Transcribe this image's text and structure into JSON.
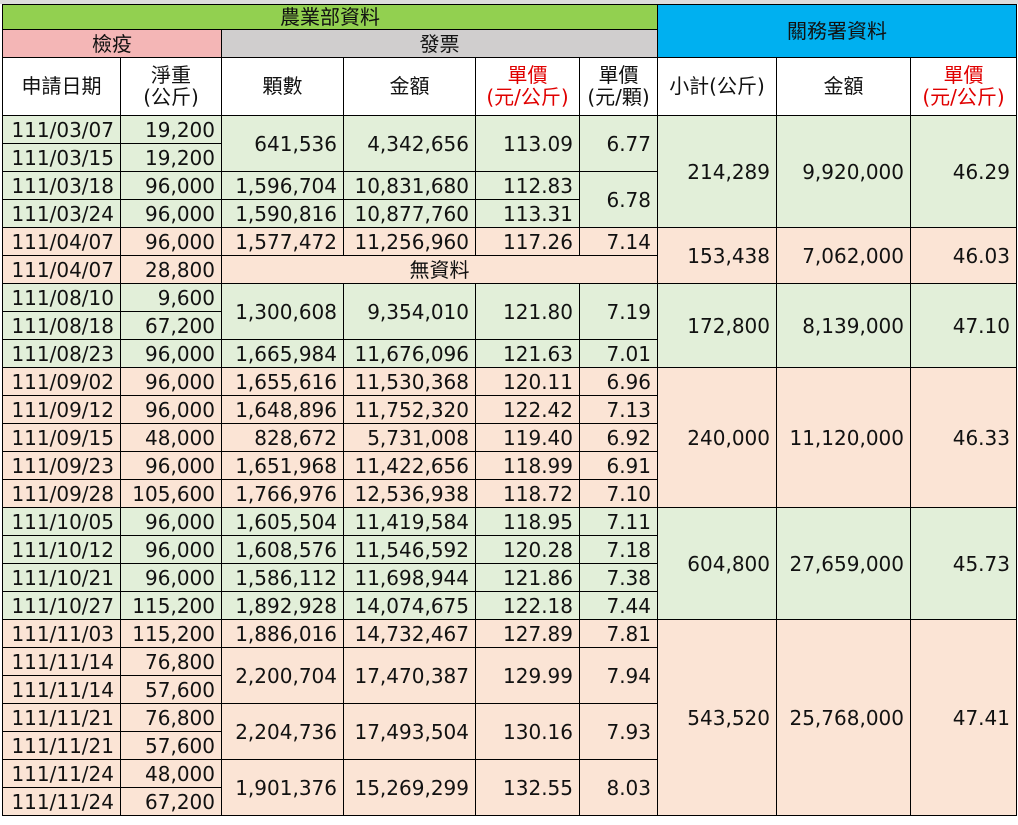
{
  "header": {
    "agri_title": "農業部資料",
    "quarantine_title": "檢疫",
    "invoice_title": "發票",
    "customs_title": "關務署資料"
  },
  "columns": {
    "date": "申請日期",
    "net_weight": "淨重\n(公斤)",
    "count": "顆數",
    "amount": "金額",
    "unit_price_kg": "單價\n(元/公斤)",
    "unit_price_each": "單價\n(元/顆)",
    "subtotal_kg": "小計(公斤)",
    "customs_amount": "金額",
    "customs_unit_price": "單價\n(元/公斤)"
  },
  "no_data_label": "無資料",
  "rows": [
    {
      "date": "111/03/07",
      "weight": "19,200"
    },
    {
      "date": "111/03/15",
      "weight": "19,200"
    },
    {
      "date": "111/03/18",
      "weight": "96,000"
    },
    {
      "date": "111/03/24",
      "weight": "96,000"
    },
    {
      "date": "111/04/07",
      "weight": "96,000"
    },
    {
      "date": "111/04/07",
      "weight": "28,800"
    },
    {
      "date": "111/08/10",
      "weight": "9,600"
    },
    {
      "date": "111/08/18",
      "weight": "67,200"
    },
    {
      "date": "111/08/23",
      "weight": "96,000"
    },
    {
      "date": "111/09/02",
      "weight": "96,000"
    },
    {
      "date": "111/09/12",
      "weight": "96,000"
    },
    {
      "date": "111/09/15",
      "weight": "48,000"
    },
    {
      "date": "111/09/23",
      "weight": "96,000"
    },
    {
      "date": "111/09/28",
      "weight": "105,600"
    },
    {
      "date": "111/10/05",
      "weight": "96,000"
    },
    {
      "date": "111/10/12",
      "weight": "96,000"
    },
    {
      "date": "111/10/21",
      "weight": "96,000"
    },
    {
      "date": "111/10/27",
      "weight": "115,200"
    },
    {
      "date": "111/11/03",
      "weight": "115,200"
    },
    {
      "date": "111/11/14",
      "weight": "76,800"
    },
    {
      "date": "111/11/14",
      "weight": "57,600"
    },
    {
      "date": "111/11/21",
      "weight": "76,800"
    },
    {
      "date": "111/11/21",
      "weight": "57,600"
    },
    {
      "date": "111/11/24",
      "weight": "48,000"
    },
    {
      "date": "111/11/24",
      "weight": "67,200"
    }
  ],
  "invoices": [
    {
      "count": "641,536",
      "amount": "4,342,656",
      "price_kg": "113.09"
    },
    {
      "count": "1,596,704",
      "amount": "10,831,680",
      "price_kg": "112.83"
    },
    {
      "count": "1,590,816",
      "amount": "10,877,760",
      "price_kg": "113.31"
    },
    {
      "count": "1,577,472",
      "amount": "11,256,960",
      "price_kg": "117.26",
      "price_each": "7.14"
    },
    {
      "count": "1,300,608",
      "amount": "9,354,010",
      "price_kg": "121.80",
      "price_each": "7.19"
    },
    {
      "count": "1,665,984",
      "amount": "11,676,096",
      "price_kg": "121.63",
      "price_each": "7.01"
    },
    {
      "count": "1,655,616",
      "amount": "11,530,368",
      "price_kg": "120.11",
      "price_each": "6.96"
    },
    {
      "count": "1,648,896",
      "amount": "11,752,320",
      "price_kg": "122.42",
      "price_each": "7.13"
    },
    {
      "count": "828,672",
      "amount": "5,731,008",
      "price_kg": "119.40",
      "price_each": "6.92"
    },
    {
      "count": "1,651,968",
      "amount": "11,422,656",
      "price_kg": "118.99",
      "price_each": "6.91"
    },
    {
      "count": "1,766,976",
      "amount": "12,536,938",
      "price_kg": "118.72",
      "price_each": "7.10"
    },
    {
      "count": "1,605,504",
      "amount": "11,419,584",
      "price_kg": "118.95",
      "price_each": "7.11"
    },
    {
      "count": "1,608,576",
      "amount": "11,546,592",
      "price_kg": "120.28",
      "price_each": "7.18"
    },
    {
      "count": "1,586,112",
      "amount": "11,698,944",
      "price_kg": "121.86",
      "price_each": "7.38"
    },
    {
      "count": "1,892,928",
      "amount": "14,074,675",
      "price_kg": "122.18",
      "price_each": "7.44"
    },
    {
      "count": "1,886,016",
      "amount": "14,732,467",
      "price_kg": "127.89",
      "price_each": "7.81"
    },
    {
      "count": "2,200,704",
      "amount": "17,470,387",
      "price_kg": "129.99",
      "price_each": "7.94"
    },
    {
      "count": "2,204,736",
      "amount": "17,493,504",
      "price_kg": "130.16",
      "price_each": "7.93"
    },
    {
      "count": "1,901,376",
      "amount": "15,269,299",
      "price_kg": "132.55",
      "price_each": "8.03"
    }
  ],
  "price_each_march": [
    "6.77",
    "6.78"
  ],
  "customs": [
    {
      "subtotal": "214,289",
      "amount": "9,920,000",
      "price": "46.29"
    },
    {
      "subtotal": "153,438",
      "amount": "7,062,000",
      "price": "46.03"
    },
    {
      "subtotal": "172,800",
      "amount": "8,139,000",
      "price": "47.10"
    },
    {
      "subtotal": "240,000",
      "amount": "11,120,000",
      "price": "46.33"
    },
    {
      "subtotal": "604,800",
      "amount": "27,659,000",
      "price": "45.73"
    },
    {
      "subtotal": "543,520",
      "amount": "25,768,000",
      "price": "47.41"
    }
  ],
  "colors": {
    "agri_header": "#92d050",
    "quarantine_header": "#f4b6b6",
    "invoice_header": "#d0cece",
    "customs_header": "#00b0f0",
    "green_band": "#e2efd9",
    "pink_band": "#fbe4d5",
    "red_text": "#e00000"
  }
}
